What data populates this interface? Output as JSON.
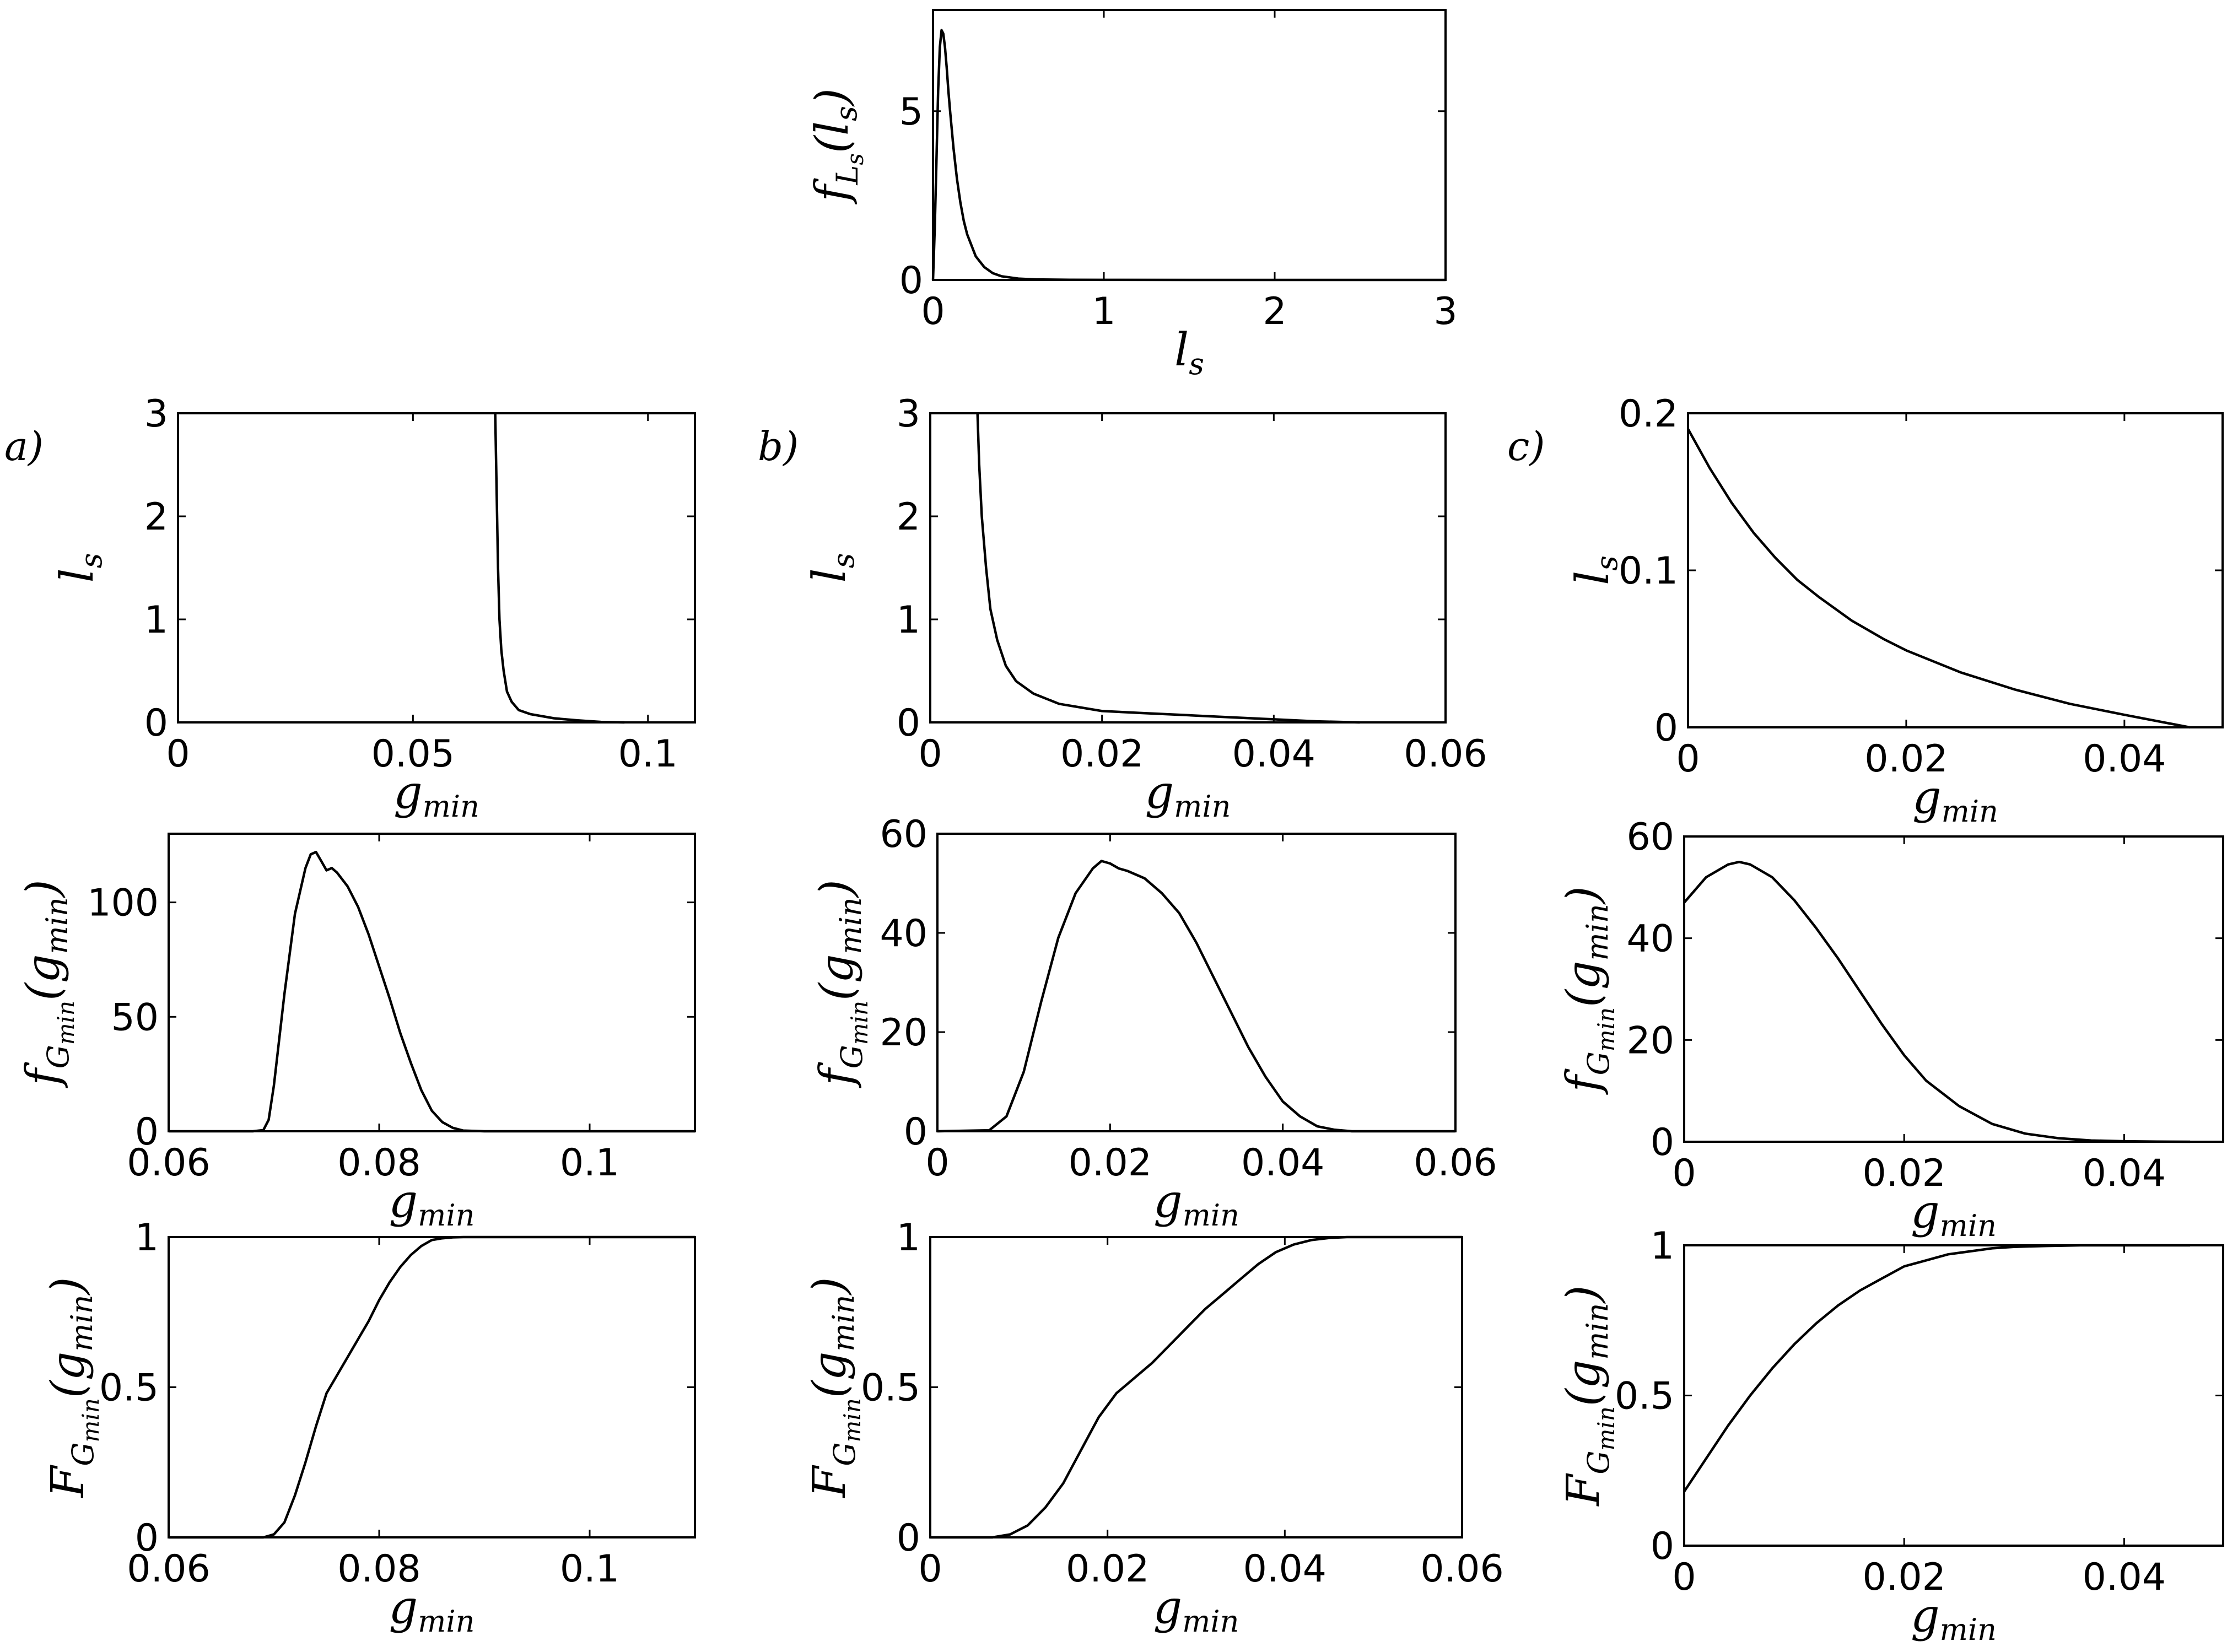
{
  "panel_labels": [
    "a)",
    "b)",
    "c)"
  ],
  "chart_data": [
    {
      "id": "top",
      "type": "line",
      "xlabel": {
        "main": "l",
        "sub": "s",
        "sub2": ""
      },
      "ylabel": {
        "pre": "f",
        "sub": "L",
        "sub2": "s",
        "post": "(l",
        "postsub": "s",
        "end": ")"
      },
      "xlim": [
        0,
        3
      ],
      "ylim": [
        0,
        8
      ],
      "xticks": [
        {
          "v": 0,
          "label": "0"
        },
        {
          "v": 1,
          "label": "1"
        },
        {
          "v": 2,
          "label": "2"
        },
        {
          "v": 3,
          "label": "3"
        }
      ],
      "yticks": [
        {
          "v": 0,
          "label": "0"
        },
        {
          "v": 5,
          "label": "5"
        }
      ],
      "x": [
        0,
        0.01,
        0.02,
        0.03,
        0.04,
        0.05,
        0.06,
        0.07,
        0.08,
        0.09,
        0.1,
        0.12,
        0.14,
        0.16,
        0.18,
        0.2,
        0.25,
        0.3,
        0.35,
        0.4,
        0.5,
        0.6,
        0.8,
        1.0,
        1.5,
        2.0,
        2.5,
        3.0
      ],
      "y": [
        0,
        1.5,
        3.5,
        5.6,
        6.9,
        7.4,
        7.3,
        6.9,
        6.3,
        5.6,
        5.0,
        3.9,
        3.0,
        2.3,
        1.75,
        1.35,
        0.7,
        0.38,
        0.2,
        0.11,
        0.04,
        0.015,
        0.004,
        0.001,
        0,
        0,
        0,
        0
      ]
    },
    {
      "id": "a1",
      "type": "line",
      "xlabel": {
        "main": "g",
        "sub": "min"
      },
      "ylabel": {
        "main": "l",
        "sub": "s"
      },
      "xlim": [
        0,
        0.11
      ],
      "ylim": [
        0,
        3
      ],
      "xticks": [
        {
          "v": 0,
          "label": "0"
        },
        {
          "v": 0.05,
          "label": "0.05"
        },
        {
          "v": 0.1,
          "label": "0.1"
        }
      ],
      "yticks": [
        {
          "v": 0,
          "label": "0"
        },
        {
          "v": 1,
          "label": "1"
        },
        {
          "v": 2,
          "label": "2"
        },
        {
          "v": 3,
          "label": "3"
        }
      ],
      "x": [
        0.0675,
        0.0677,
        0.0679,
        0.0681,
        0.0684,
        0.0688,
        0.0693,
        0.07,
        0.071,
        0.0725,
        0.075,
        0.08,
        0.085,
        0.09,
        0.095
      ],
      "y": [
        3.0,
        2.5,
        2.0,
        1.5,
        1.0,
        0.7,
        0.5,
        0.3,
        0.2,
        0.12,
        0.08,
        0.04,
        0.02,
        0.005,
        0
      ]
    },
    {
      "id": "b1",
      "type": "line",
      "xlabel": {
        "main": "g",
        "sub": "min"
      },
      "ylabel": {
        "main": "l",
        "sub": "s"
      },
      "xlim": [
        0,
        0.06
      ],
      "ylim": [
        0,
        3
      ],
      "xticks": [
        {
          "v": 0,
          "label": "0"
        },
        {
          "v": 0.02,
          "label": "0.02"
        },
        {
          "v": 0.04,
          "label": "0.04"
        },
        {
          "v": 0.06,
          "label": "0.06"
        }
      ],
      "yticks": [
        {
          "v": 0,
          "label": "0"
        },
        {
          "v": 1,
          "label": "1"
        },
        {
          "v": 2,
          "label": "2"
        },
        {
          "v": 3,
          "label": "3"
        }
      ],
      "x": [
        0.0055,
        0.0057,
        0.006,
        0.0065,
        0.007,
        0.0078,
        0.0088,
        0.01,
        0.012,
        0.015,
        0.02,
        0.025,
        0.03,
        0.035,
        0.04,
        0.045,
        0.05
      ],
      "y": [
        3.0,
        2.5,
        2.0,
        1.5,
        1.1,
        0.8,
        0.55,
        0.4,
        0.28,
        0.18,
        0.11,
        0.09,
        0.07,
        0.05,
        0.03,
        0.01,
        0
      ]
    },
    {
      "id": "c1",
      "type": "line",
      "xlabel": {
        "main": "g",
        "sub": "min"
      },
      "ylabel": {
        "main": "l",
        "sub": "s"
      },
      "xlim": [
        0,
        0.049
      ],
      "ylim": [
        0,
        0.2
      ],
      "xticks": [
        {
          "v": 0,
          "label": "0"
        },
        {
          "v": 0.02,
          "label": "0.02"
        },
        {
          "v": 0.04,
          "label": "0.04"
        }
      ],
      "yticks": [
        {
          "v": 0,
          "label": "0"
        },
        {
          "v": 0.1,
          "label": "0.1"
        },
        {
          "v": 0.2,
          "label": "0.2"
        }
      ],
      "x": [
        0,
        0.002,
        0.004,
        0.006,
        0.008,
        0.01,
        0.012,
        0.015,
        0.018,
        0.02,
        0.025,
        0.03,
        0.035,
        0.04,
        0.046
      ],
      "y": [
        0.19,
        0.165,
        0.143,
        0.124,
        0.108,
        0.094,
        0.083,
        0.068,
        0.056,
        0.049,
        0.035,
        0.024,
        0.015,
        0.008,
        0
      ]
    },
    {
      "id": "a2",
      "type": "line",
      "xlabel": {
        "main": "g",
        "sub": "min"
      },
      "ylabel": {
        "pre": "f",
        "sub": "G",
        "sub2": "min",
        "post": "(g",
        "postsub": "min",
        "end": ")"
      },
      "xlim": [
        0.06,
        0.11
      ],
      "ylim": [
        0,
        130
      ],
      "xticks": [
        {
          "v": 0.06,
          "label": "0.06"
        },
        {
          "v": 0.08,
          "label": "0.08"
        },
        {
          "v": 0.1,
          "label": "0.1"
        }
      ],
      "yticks": [
        {
          "v": 0,
          "label": "0"
        },
        {
          "v": 50,
          "label": "50"
        },
        {
          "v": 100,
          "label": "100"
        }
      ],
      "x": [
        0.06,
        0.068,
        0.069,
        0.0695,
        0.07,
        0.071,
        0.072,
        0.073,
        0.0735,
        0.074,
        0.0745,
        0.075,
        0.0755,
        0.076,
        0.077,
        0.078,
        0.079,
        0.08,
        0.081,
        0.082,
        0.083,
        0.084,
        0.085,
        0.086,
        0.087,
        0.088,
        0.09,
        0.11
      ],
      "y": [
        0,
        0,
        0.5,
        5,
        20,
        60,
        95,
        115,
        121,
        122,
        118,
        114,
        115,
        113,
        107,
        98,
        86,
        72,
        58,
        43,
        30,
        18,
        9,
        4,
        1.5,
        0.3,
        0,
        0
      ]
    },
    {
      "id": "b2",
      "type": "line",
      "xlabel": {
        "main": "g",
        "sub": "min"
      },
      "ylabel": {
        "pre": "f",
        "sub": "G",
        "sub2": "min",
        "post": "(g",
        "postsub": "min",
        "end": ")"
      },
      "xlim": [
        0,
        0.06
      ],
      "ylim": [
        0,
        60
      ],
      "xticks": [
        {
          "v": 0,
          "label": "0"
        },
        {
          "v": 0.02,
          "label": "0.02"
        },
        {
          "v": 0.04,
          "label": "0.04"
        },
        {
          "v": 0.06,
          "label": "0.06"
        }
      ],
      "yticks": [
        {
          "v": 0,
          "label": "0"
        },
        {
          "v": 20,
          "label": "20"
        },
        {
          "v": 40,
          "label": "40"
        },
        {
          "v": 60,
          "label": "60"
        }
      ],
      "x": [
        0,
        0.006,
        0.008,
        0.01,
        0.012,
        0.014,
        0.016,
        0.018,
        0.019,
        0.02,
        0.021,
        0.022,
        0.024,
        0.026,
        0.028,
        0.03,
        0.032,
        0.034,
        0.036,
        0.038,
        0.04,
        0.042,
        0.044,
        0.046,
        0.048,
        0.06
      ],
      "y": [
        0,
        0.2,
        3,
        12,
        26,
        39,
        48,
        53,
        54.5,
        54,
        53,
        52.5,
        51,
        48,
        44,
        38,
        31,
        24,
        17,
        11,
        6,
        3,
        1,
        0.3,
        0,
        0
      ]
    },
    {
      "id": "c2",
      "type": "line",
      "xlabel": {
        "main": "g",
        "sub": "min"
      },
      "ylabel": {
        "pre": "f",
        "sub": "G",
        "sub2": "min",
        "post": "(g",
        "postsub": "min",
        "end": ")"
      },
      "xlim": [
        0,
        0.049
      ],
      "ylim": [
        0,
        60
      ],
      "xticks": [
        {
          "v": 0,
          "label": "0"
        },
        {
          "v": 0.02,
          "label": "0.02"
        },
        {
          "v": 0.04,
          "label": "0.04"
        }
      ],
      "yticks": [
        {
          "v": 0,
          "label": "0"
        },
        {
          "v": 20,
          "label": "20"
        },
        {
          "v": 40,
          "label": "40"
        },
        {
          "v": 60,
          "label": "60"
        }
      ],
      "x": [
        0,
        0.002,
        0.004,
        0.005,
        0.006,
        0.008,
        0.01,
        0.012,
        0.014,
        0.016,
        0.018,
        0.02,
        0.022,
        0.025,
        0.028,
        0.031,
        0.034,
        0.037,
        0.04,
        0.043,
        0.046
      ],
      "y": [
        47,
        52,
        54.5,
        55,
        54.5,
        52,
        47.5,
        42,
        36,
        29.5,
        23,
        17,
        12,
        7,
        3.5,
        1.6,
        0.7,
        0.25,
        0.1,
        0.03,
        0
      ]
    },
    {
      "id": "a3",
      "type": "line",
      "xlabel": {
        "main": "g",
        "sub": "min"
      },
      "ylabel": {
        "pre": "F",
        "sub": "G",
        "sub2": "min",
        "post": "(g",
        "postsub": "min",
        "end": ")"
      },
      "xlim": [
        0.06,
        0.11
      ],
      "ylim": [
        0,
        1
      ],
      "xticks": [
        {
          "v": 0.06,
          "label": "0.06"
        },
        {
          "v": 0.08,
          "label": "0.08"
        },
        {
          "v": 0.1,
          "label": "0.1"
        }
      ],
      "yticks": [
        {
          "v": 0,
          "label": "0"
        },
        {
          "v": 0.5,
          "label": "0.5"
        },
        {
          "v": 1,
          "label": "1"
        }
      ],
      "x": [
        0.06,
        0.069,
        0.07,
        0.071,
        0.072,
        0.073,
        0.074,
        0.075,
        0.076,
        0.077,
        0.078,
        0.079,
        0.08,
        0.081,
        0.082,
        0.083,
        0.084,
        0.085,
        0.086,
        0.087,
        0.088,
        0.11
      ],
      "y": [
        0,
        0,
        0.01,
        0.05,
        0.14,
        0.25,
        0.37,
        0.48,
        0.54,
        0.6,
        0.66,
        0.72,
        0.79,
        0.85,
        0.9,
        0.94,
        0.97,
        0.99,
        0.996,
        0.999,
        1,
        1
      ]
    },
    {
      "id": "b3",
      "type": "line",
      "xlabel": {
        "main": "g",
        "sub": "min"
      },
      "ylabel": {
        "pre": "F",
        "sub": "G",
        "sub2": "min",
        "post": "(g",
        "postsub": "min",
        "end": ")"
      },
      "xlim": [
        0,
        0.06
      ],
      "ylim": [
        0,
        1
      ],
      "xticks": [
        {
          "v": 0,
          "label": "0"
        },
        {
          "v": 0.02,
          "label": "0.02"
        },
        {
          "v": 0.04,
          "label": "0.04"
        },
        {
          "v": 0.06,
          "label": "0.06"
        }
      ],
      "yticks": [
        {
          "v": 0,
          "label": "0"
        },
        {
          "v": 0.5,
          "label": "0.5"
        },
        {
          "v": 1,
          "label": "1"
        }
      ],
      "x": [
        0,
        0.007,
        0.009,
        0.011,
        0.013,
        0.015,
        0.017,
        0.019,
        0.021,
        0.023,
        0.025,
        0.027,
        0.029,
        0.031,
        0.033,
        0.035,
        0.037,
        0.039,
        0.041,
        0.043,
        0.045,
        0.047,
        0.06
      ],
      "y": [
        0,
        0,
        0.01,
        0.04,
        0.1,
        0.18,
        0.29,
        0.4,
        0.48,
        0.53,
        0.58,
        0.64,
        0.7,
        0.76,
        0.81,
        0.86,
        0.91,
        0.95,
        0.975,
        0.99,
        0.997,
        1,
        1
      ]
    },
    {
      "id": "c3",
      "type": "line",
      "xlabel": {
        "main": "g",
        "sub": "min"
      },
      "ylabel": {
        "pre": "F",
        "sub": "G",
        "sub2": "min",
        "post": "(g",
        "postsub": "min",
        "end": ")"
      },
      "xlim": [
        0,
        0.049
      ],
      "ylim": [
        0,
        1
      ],
      "xticks": [
        {
          "v": 0,
          "label": "0"
        },
        {
          "v": 0.02,
          "label": "0.02"
        },
        {
          "v": 0.04,
          "label": "0.04"
        }
      ],
      "yticks": [
        {
          "v": 0,
          "label": "0"
        },
        {
          "v": 0.5,
          "label": "0.5"
        },
        {
          "v": 1,
          "label": "1"
        }
      ],
      "x": [
        0,
        0.002,
        0.004,
        0.006,
        0.008,
        0.01,
        0.012,
        0.014,
        0.016,
        0.018,
        0.02,
        0.022,
        0.024,
        0.026,
        0.028,
        0.03,
        0.033,
        0.036,
        0.04,
        0.046
      ],
      "y": [
        0.18,
        0.29,
        0.4,
        0.5,
        0.59,
        0.67,
        0.74,
        0.8,
        0.85,
        0.89,
        0.93,
        0.95,
        0.97,
        0.98,
        0.99,
        0.995,
        0.998,
        1,
        1,
        1
      ]
    }
  ]
}
